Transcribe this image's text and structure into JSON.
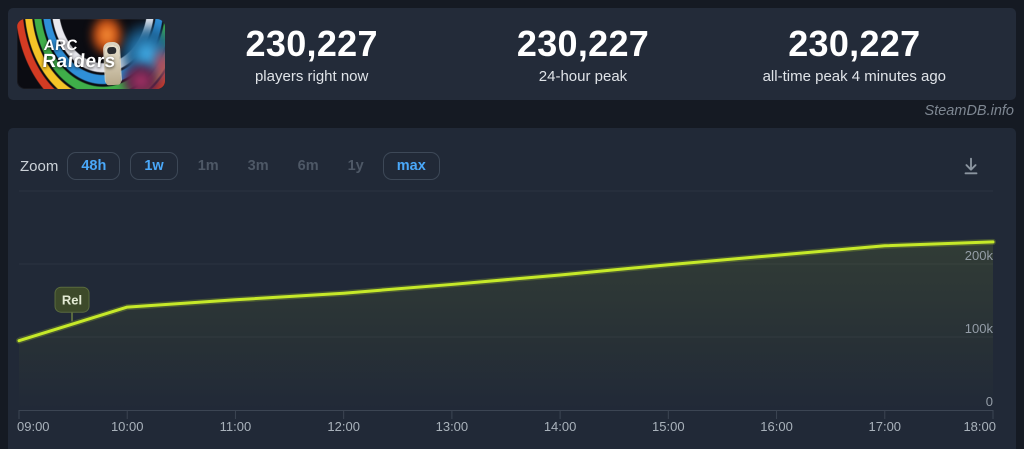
{
  "header": {
    "banner": {
      "game": "ARC Raiders",
      "title_line1": "ARC",
      "title_line2": "Raiders"
    },
    "stats": [
      {
        "value": "230,227",
        "label": "players right now"
      },
      {
        "value": "230,227",
        "label": "24-hour peak"
      },
      {
        "value": "230,227",
        "label": "all-time peak 4 minutes ago"
      }
    ]
  },
  "watermark": "SteamDB.info",
  "toolbar": {
    "zoom_label": "Zoom",
    "buttons": [
      {
        "label": "48h",
        "enabled": true
      },
      {
        "label": "1w",
        "enabled": true
      },
      {
        "label": "1m",
        "enabled": false
      },
      {
        "label": "3m",
        "enabled": false
      },
      {
        "label": "6m",
        "enabled": false
      },
      {
        "label": "1y",
        "enabled": false
      },
      {
        "label": "max",
        "enabled": true
      }
    ],
    "download_icon": "download-icon"
  },
  "colors": {
    "accent_blue": "#4aa8f9",
    "line_green": "#c6e929",
    "grid": "#2b3340",
    "axis": "#3c4553",
    "x_label": "#a9b2bb",
    "y_label": "#949da7",
    "annotation_bg": "#3d4a2a",
    "annotation_border": "#5a6b3e",
    "annotation_text": "#e3ead3",
    "icon_gray": "#8b95a0"
  },
  "chart_data": {
    "type": "line",
    "title": "",
    "x": [
      "09:00",
      "10:00",
      "11:00",
      "12:00",
      "13:00",
      "14:00",
      "15:00",
      "16:00",
      "17:00",
      "18:00"
    ],
    "series": [
      {
        "name": "Players",
        "values": [
          95000,
          141000,
          151000,
          160000,
          172000,
          185000,
          199000,
          212000,
          225000,
          230227
        ]
      }
    ],
    "ylim": [
      0,
      300000
    ],
    "y_ticks": [
      {
        "value": 0,
        "label": "0"
      },
      {
        "value": 100000,
        "label": "100k"
      },
      {
        "value": 200000,
        "label": "200k"
      }
    ],
    "grid_values": [
      100000,
      200000,
      300000
    ],
    "legend": "none",
    "annotations": [
      {
        "label": "Rel",
        "x_index": 0.49
      }
    ]
  }
}
